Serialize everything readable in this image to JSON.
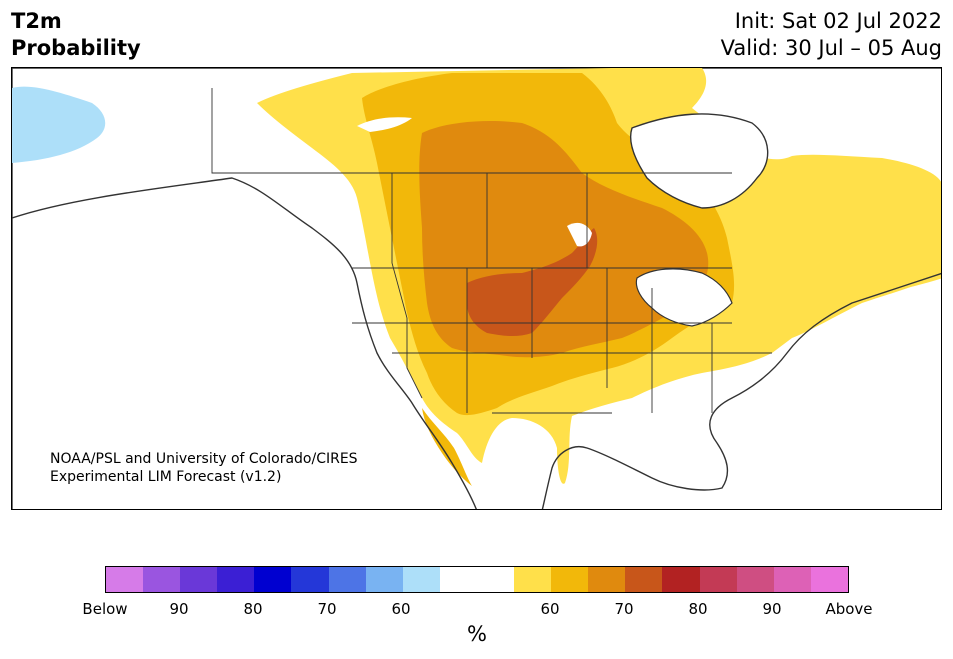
{
  "header": {
    "variable": "T2m",
    "product": "Probability",
    "init": "Init: Sat 02 Jul 2022",
    "valid": "Valid: 30 Jul – 05 Aug"
  },
  "credit": {
    "line1": "NOAA/PSL and University of Colorado/CIRES",
    "line2": "Experimental LIM Forecast (v1.2)"
  },
  "colorbar": {
    "colors": [
      "#d67be8",
      "#9a55e0",
      "#6a38d8",
      "#3b1fd4",
      "#0000d0",
      "#2437d8",
      "#4d74e6",
      "#79b3f2",
      "#addff9",
      "#ffffff",
      "#ffffff",
      "#ffe04a",
      "#f2b80a",
      "#e08a0e",
      "#c8561a",
      "#b22222",
      "#c33a55",
      "#cf4e82",
      "#dd61b6",
      "#ea72dd"
    ],
    "ticks": [
      "Below",
      "90",
      "80",
      "70",
      "60",
      "60",
      "70",
      "80",
      "90",
      "Above"
    ],
    "unit": "%"
  },
  "map": {
    "ocean_color": "#ffffff",
    "below_color": "#addff9",
    "above_colors": [
      "#ffe04a",
      "#f2b80a",
      "#e08a0e",
      "#c8561a"
    ]
  }
}
